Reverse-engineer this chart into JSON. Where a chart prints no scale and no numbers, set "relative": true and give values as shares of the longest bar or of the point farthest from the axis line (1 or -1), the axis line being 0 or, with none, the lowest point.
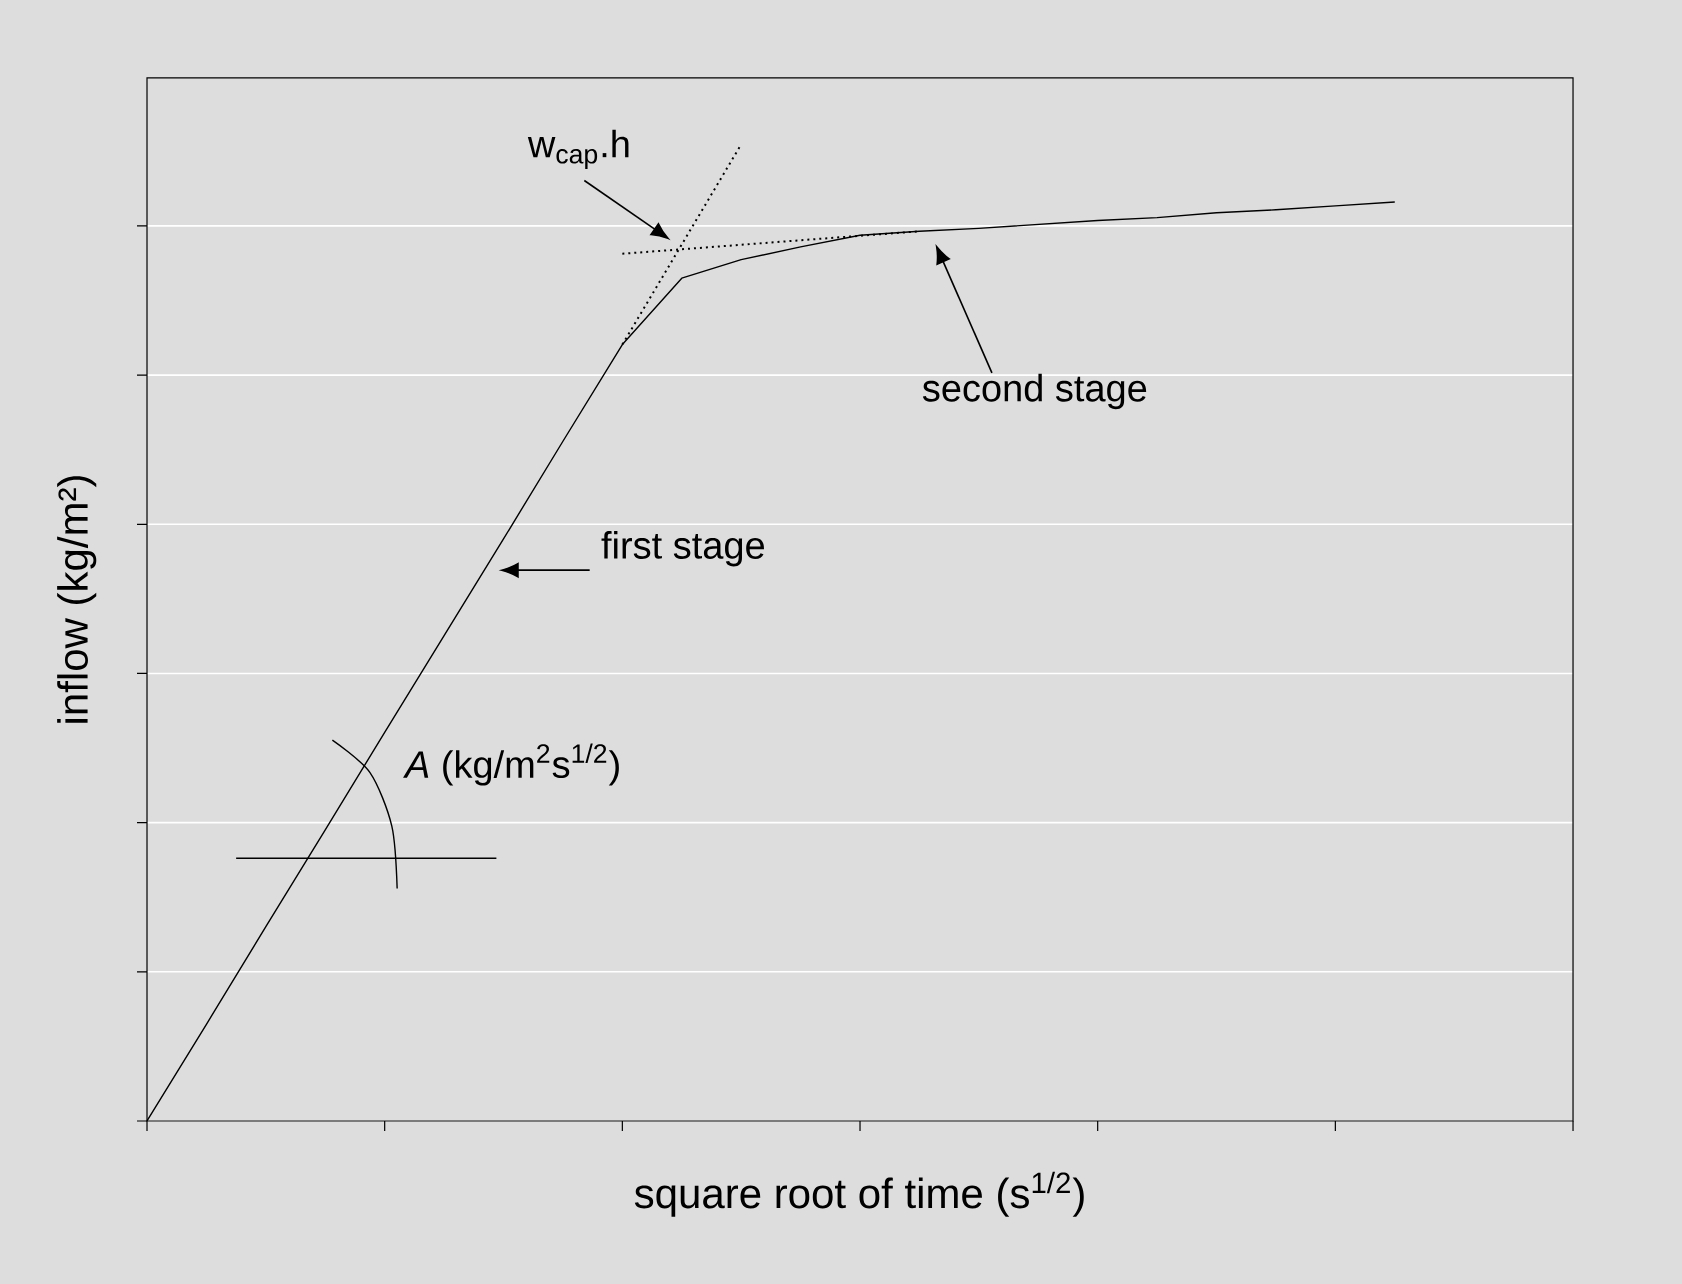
{
  "chart_data": {
    "type": "line",
    "relative": true,
    "xlabel": "square root of time (s$^{1/2}$)",
    "ylabel": "inflow (kg/m²)",
    "grid": "y",
    "tick_labels": false,
    "categories": [
      null,
      null,
      null,
      null,
      null,
      null,
      null,
      null,
      null,
      null,
      null,
      null,
      null,
      null,
      null,
      null,
      null,
      null,
      null,
      null,
      null,
      null,
      null,
      null,
      null
    ],
    "series": [
      {
        "color": "#000000",
        "line_style": "solid",
        "values": [
          0,
          0.099,
          0.199,
          0.298,
          0.398,
          0.497,
          0.596,
          0.696,
          0.795,
          0.863,
          0.882,
          0.895,
          0.907,
          0.911,
          0.914,
          0.918,
          0.922,
          0.925,
          0.93,
          0.933,
          0.937,
          0.941,
          null,
          null,
          null
        ]
      },
      {
        "color": "#000000",
        "line_style": "dotted",
        "values": [
          null,
          null,
          null,
          null,
          null,
          null,
          null,
          null,
          0.795,
          null,
          1,
          null,
          null,
          null,
          null,
          null,
          null,
          null,
          null,
          null,
          null,
          null,
          null,
          null,
          null
        ]
      },
      {
        "color": "#000000",
        "line_style": "dotted",
        "values": [
          null,
          null,
          null,
          null,
          null,
          null,
          null,
          null,
          0.888,
          null,
          null,
          null,
          null,
          0.911,
          null,
          null,
          null,
          null,
          null,
          null,
          null,
          null,
          null,
          null,
          null
        ]
      }
    ],
    "annotations": [
      "w$_{cap}$.h",
      "second stage",
      "first stage",
      "*A* (kg/m$^{2}$s$^{1/2}$)"
    ]
  }
}
